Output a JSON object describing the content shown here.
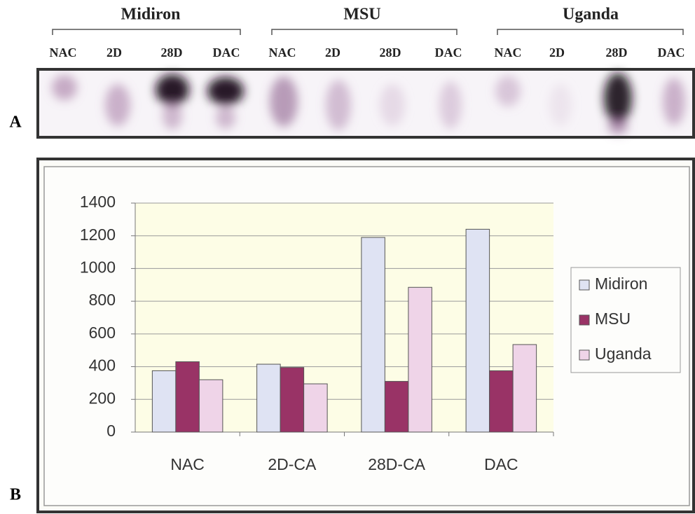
{
  "panel_a": {
    "label": "A",
    "groups": [
      {
        "name": "Midiron",
        "lanes": [
          "NAC",
          "2D",
          "28D",
          "DAC"
        ]
      },
      {
        "name": "MSU",
        "lanes": [
          "NAC",
          "2D",
          "28D",
          "DAC"
        ]
      },
      {
        "name": "Uganda",
        "lanes": [
          "NAC",
          "2D",
          "28D",
          "DAC"
        ]
      }
    ]
  },
  "panel_b": {
    "label": "B"
  },
  "chart_data": {
    "type": "bar",
    "categories": [
      "NAC",
      "2D-CA",
      "28D-CA",
      "DAC"
    ],
    "series": [
      {
        "name": "Midiron",
        "color": "#dfe3f3",
        "values": [
          375,
          415,
          1190,
          1240
        ]
      },
      {
        "name": "MSU",
        "color": "#993366",
        "values": [
          430,
          395,
          310,
          375
        ]
      },
      {
        "name": "Uganda",
        "color": "#efd4e8",
        "values": [
          320,
          295,
          885,
          535
        ]
      }
    ],
    "ylim": [
      0,
      1400
    ],
    "yticks": [
      0,
      200,
      400,
      600,
      800,
      1000,
      1200,
      1400
    ],
    "grid": true,
    "legend": "right"
  }
}
